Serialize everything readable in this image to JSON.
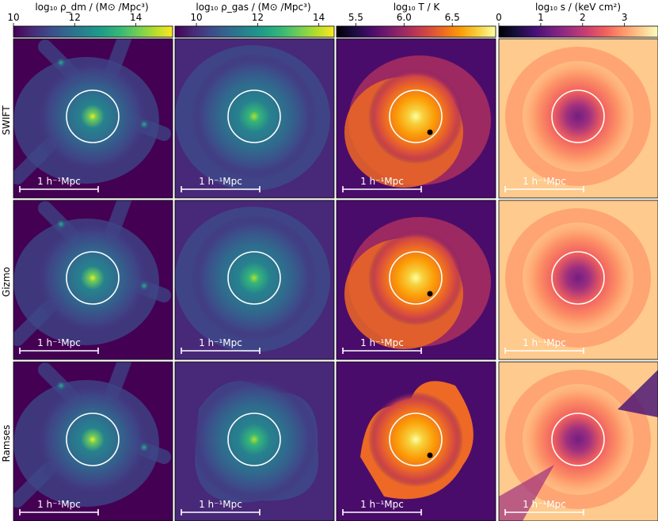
{
  "figure": {
    "row_labels": [
      "SWIFT",
      "Gizmo",
      "Ramses"
    ],
    "scale_bar_label": "1 h⁻¹Mpc"
  },
  "colorbars": [
    {
      "quantity": "dm-density",
      "label": "log₁₀ ρ_dm / (M⊙ /Mpc³)",
      "ticks": [
        "10",
        "12",
        "14"
      ],
      "range": [
        10,
        15.2
      ],
      "colormap": "viridis"
    },
    {
      "quantity": "gas-density",
      "label": "log₁₀ ρ_gas / (M⊙ /Mpc³)",
      "ticks": [
        "10",
        "12",
        "14"
      ],
      "range": [
        9.3,
        14.5
      ],
      "colormap": "viridis"
    },
    {
      "quantity": "temperature",
      "label": "log₁₀ T / K",
      "ticks": [
        "5.5",
        "6.0",
        "6.5"
      ],
      "range": [
        5.3,
        6.95
      ],
      "colormap": "inferno"
    },
    {
      "quantity": "entropy",
      "label": "log₁₀ s / (keV cm²)",
      "ticks": [
        "0",
        "1",
        "2",
        "3"
      ],
      "range": [
        0,
        3.8
      ],
      "colormap": "magma"
    }
  ],
  "chart_data": {
    "type": "heatmap",
    "rows": [
      "SWIFT",
      "Gizmo",
      "Ramses"
    ],
    "columns": [
      "dm-density",
      "gas-density",
      "temperature",
      "entropy"
    ],
    "description_units": {
      "dm-density": "log10 rho_dm / (Msun/Mpc^3)",
      "gas-density": "log10 rho_gas / (Msun/Mpc^3)",
      "temperature": "log10 T / K",
      "entropy": "log10 s / (keV cm^2)"
    },
    "scale_bar_length": "1 h^-1 Mpc",
    "colorbar_ticks": {
      "dm-density": [
        10,
        12,
        14
      ],
      "gas-density": [
        10,
        12,
        14
      ],
      "temperature": [
        5.5,
        6.0,
        6.5
      ],
      "entropy": [
        0,
        1,
        2,
        3
      ]
    }
  },
  "colors": {
    "viridis": [
      "#440154",
      "#482878",
      "#3e4989",
      "#31688e",
      "#26828e",
      "#1f9e89",
      "#35b779",
      "#6ece58",
      "#b5de2b",
      "#fde725"
    ],
    "inferno": [
      "#000004",
      "#1b0c41",
      "#4a0c6b",
      "#781c6d",
      "#a52c60",
      "#cf4446",
      "#ed6925",
      "#fb9b06",
      "#f7d13d",
      "#fcffa4"
    ],
    "magma": [
      "#000004",
      "#180f3d",
      "#440f76",
      "#721f81",
      "#9e2f7f",
      "#cd4071",
      "#f1605d",
      "#fd9668",
      "#feca8d",
      "#fcfdbf"
    ]
  }
}
